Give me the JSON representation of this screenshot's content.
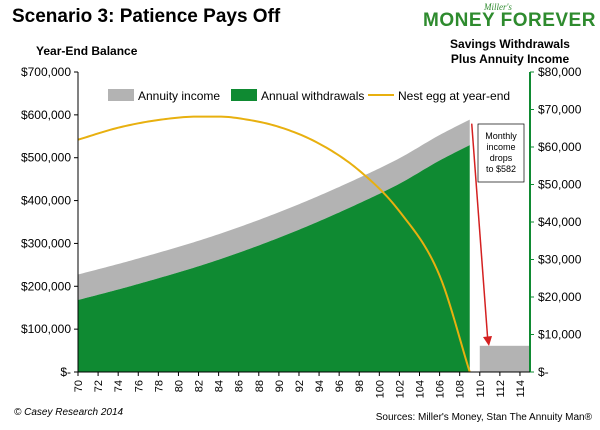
{
  "header": {
    "title": "Scenario 3: Patience Pays Off",
    "logo_small": "Miller's",
    "logo_main": "MONEY FOREVER"
  },
  "footer": {
    "left": "© Casey Research 2014",
    "right": "Sources: Miller's Money, Stan The Annuity Man®"
  },
  "colors": {
    "annuity": "#b3b3b3",
    "withdrawals": "#0f8a32",
    "nest_egg": "#e8b00f",
    "right_axis": "#0f8a32",
    "annotation_arrow": "#d42020"
  },
  "chart_data": {
    "type": "area",
    "left_axis": {
      "title": "Year-End Balance",
      "ylim": [
        0,
        700000
      ],
      "tick_labels": [
        "$-",
        "$100,000",
        "$200,000",
        "$300,000",
        "$400,000",
        "$500,000",
        "$600,000",
        "$700,000"
      ]
    },
    "right_axis": {
      "title_lines": [
        "Savings Withdrawals",
        "Plus Annuity Income"
      ],
      "ylim": [
        0,
        80000
      ],
      "tick_labels": [
        "$-",
        "$10,000",
        "$20,000",
        "$30,000",
        "$40,000",
        "$50,000",
        "$60,000",
        "$70,000",
        "$80,000"
      ]
    },
    "x_axis": {
      "min": 70,
      "max": 115,
      "tick_labels": [
        "70",
        "72",
        "74",
        "76",
        "78",
        "80",
        "82",
        "84",
        "86",
        "88",
        "90",
        "92",
        "94",
        "96",
        "98",
        "100",
        "102",
        "104",
        "106",
        "108",
        "110",
        "112",
        "114"
      ]
    },
    "legend": [
      {
        "key": "annuity",
        "label": "Annuity income"
      },
      {
        "key": "withdrawals",
        "label": "Annual withdrawals"
      },
      {
        "key": "nest_egg",
        "label": "Nest egg at year-end"
      }
    ],
    "series": [
      {
        "name": "Annual withdrawals",
        "axis": "right",
        "x": [
          70,
          74,
          78,
          82,
          86,
          90,
          94,
          98,
          102,
          106,
          109
        ],
        "values": [
          19200,
          22000,
          25000,
          28200,
          31800,
          35800,
          40200,
          45000,
          50200,
          56400,
          60500
        ]
      },
      {
        "name": "Annuity income",
        "axis": "right",
        "x": [
          70,
          109,
          110,
          115
        ],
        "values": [
          6800,
          6800,
          6984,
          6984
        ]
      },
      {
        "name": "Nest egg at year-end",
        "axis": "left",
        "x": [
          70,
          74,
          78,
          82,
          84,
          86,
          90,
          94,
          98,
          102,
          106,
          109
        ],
        "values": [
          542000,
          570000,
          588000,
          596000,
          596000,
          592000,
          572000,
          533000,
          470000,
          375000,
          225000,
          0
        ]
      }
    ],
    "annotation": {
      "lines": [
        "Monthly",
        "income",
        "drops",
        "to $582"
      ]
    }
  }
}
